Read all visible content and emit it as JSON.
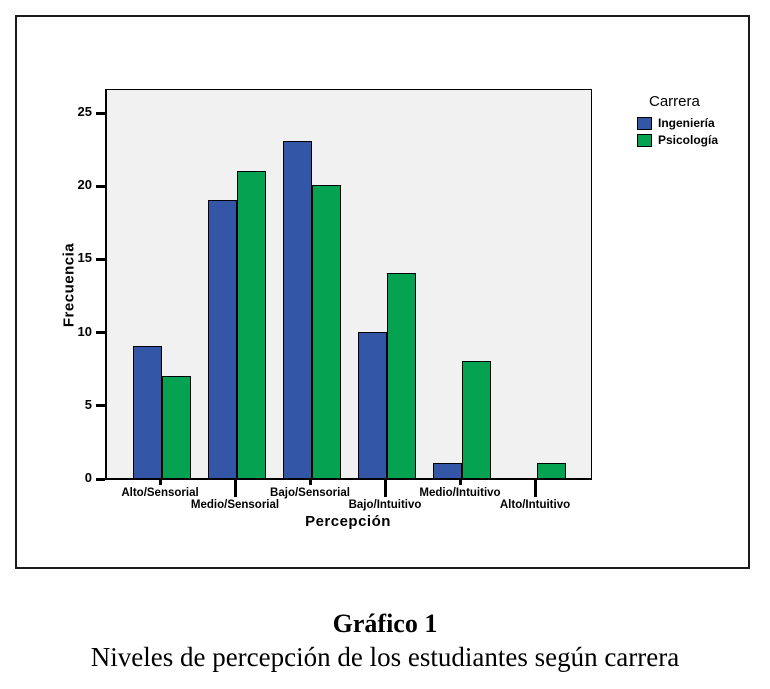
{
  "figure": {
    "caption_title": "Gráfico 1",
    "caption_subtitle": "Niveles de percepción de los estudiantes según carrera"
  },
  "chart_data": {
    "type": "bar",
    "title": "",
    "xlabel": "Percepción",
    "ylabel": "Frecuencia",
    "categories": [
      "Alto/Sensorial",
      "Medio/Sensorial",
      "Bajo/Sensorial",
      "Bajo/Intuitivo",
      "Medio/Intuitivo",
      "Alto/Intuitivo"
    ],
    "series": [
      {
        "name": "Ingeniería",
        "color": "#3356a6",
        "values": [
          9,
          19,
          23,
          10,
          1,
          0
        ]
      },
      {
        "name": "Psicología",
        "color": "#04a251",
        "values": [
          7,
          21,
          20,
          14,
          8,
          1
        ]
      }
    ],
    "legend_title": "Carrera",
    "legend_position": "right",
    "yticks": [
      0,
      5,
      10,
      15,
      20,
      25
    ],
    "ylim": [
      0,
      26.5
    ],
    "grid": false,
    "plot_bg": "#f1f1f2",
    "axis_color": "#000000"
  }
}
